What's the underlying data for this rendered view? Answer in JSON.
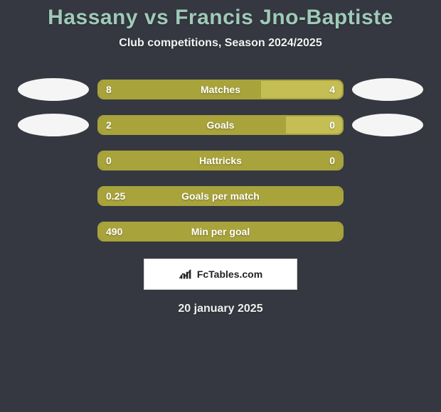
{
  "title": "Hassany vs Francis Jno-Baptiste",
  "subtitle": "Club competitions, Season 2024/2025",
  "date": "20 january 2025",
  "attribution": "FcTables.com",
  "colors": {
    "background": "#353840",
    "title": "#9fcab9",
    "subtitle": "#f2f2f2",
    "date": "#f0f0f0",
    "bar_border": "#a9a33b",
    "bar_left_fill": "#a9a33b",
    "bar_right_fill": "#c4be55",
    "bar_text": "#ffffff",
    "badge_left": "#f5f5f5",
    "badge_right": "#f5f5f5"
  },
  "metrics": [
    {
      "label": "Matches",
      "left_value": "8",
      "right_value": "4",
      "left_pct": 66.7,
      "right_pct": 33.3,
      "show_badges": true
    },
    {
      "label": "Goals",
      "left_value": "2",
      "right_value": "0",
      "left_pct": 77.0,
      "right_pct": 23.0,
      "show_badges": true
    },
    {
      "label": "Hattricks",
      "left_value": "0",
      "right_value": "0",
      "left_pct": 100,
      "right_pct": 0,
      "show_badges": false
    },
    {
      "label": "Goals per match",
      "left_value": "0.25",
      "right_value": "",
      "left_pct": 100,
      "right_pct": 0,
      "show_badges": false
    },
    {
      "label": "Min per goal",
      "left_value": "490",
      "right_value": "",
      "left_pct": 100,
      "right_pct": 0,
      "show_badges": false
    }
  ]
}
